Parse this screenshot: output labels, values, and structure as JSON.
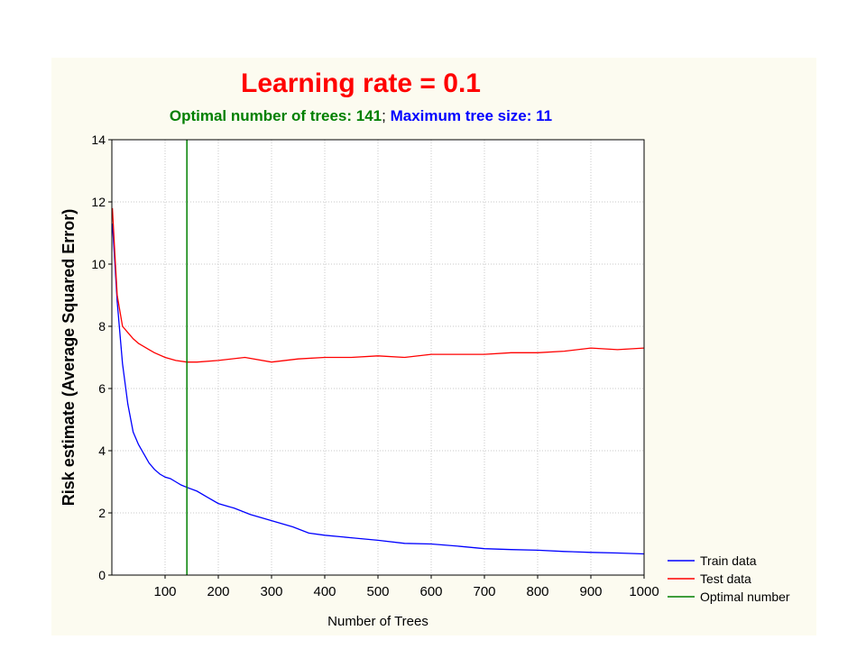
{
  "chart_data": {
    "type": "line",
    "title": "Learning rate = 0.1",
    "subtitle": {
      "optimal_label": "Optimal number of trees: 141",
      "separator": ";",
      "tree_size_label": "Maximum tree size: 11"
    },
    "xlabel": "Number of Trees",
    "ylabel": "Risk estimate (Average Squared Error)",
    "xlim": [
      0,
      1000
    ],
    "ylim": [
      0,
      14
    ],
    "xticks": [
      100,
      200,
      300,
      400,
      500,
      600,
      700,
      800,
      900,
      1000
    ],
    "yticks": [
      0,
      2,
      4,
      6,
      8,
      10,
      12,
      14
    ],
    "grid": true,
    "legend_position": "bottom-right-outside",
    "vline": {
      "x": 141,
      "name": "Optimal number",
      "color": "#008000"
    },
    "series": [
      {
        "name": "Train data",
        "color": "#0000ff",
        "x": [
          1,
          5,
          10,
          20,
          30,
          40,
          50,
          60,
          70,
          80,
          90,
          100,
          110,
          120,
          130,
          141,
          160,
          180,
          200,
          230,
          260,
          300,
          340,
          370,
          400,
          450,
          500,
          550,
          600,
          650,
          700,
          750,
          800,
          850,
          900,
          950,
          1000
        ],
        "values": [
          11.3,
          10.2,
          8.8,
          6.8,
          5.5,
          4.6,
          4.2,
          3.9,
          3.6,
          3.4,
          3.25,
          3.15,
          3.1,
          3.0,
          2.9,
          2.82,
          2.7,
          2.5,
          2.3,
          2.15,
          1.95,
          1.75,
          1.55,
          1.35,
          1.28,
          1.2,
          1.12,
          1.02,
          1.0,
          0.93,
          0.85,
          0.82,
          0.8,
          0.76,
          0.73,
          0.71,
          0.68
        ]
      },
      {
        "name": "Test data",
        "color": "#ff0000",
        "x": [
          1,
          5,
          10,
          20,
          30,
          40,
          50,
          60,
          70,
          80,
          100,
          120,
          141,
          160,
          200,
          250,
          300,
          350,
          400,
          450,
          500,
          550,
          600,
          650,
          700,
          750,
          800,
          850,
          900,
          950,
          1000
        ],
        "values": [
          11.8,
          10.5,
          9.0,
          8.0,
          7.8,
          7.6,
          7.45,
          7.35,
          7.25,
          7.15,
          7.0,
          6.9,
          6.85,
          6.85,
          6.9,
          7.0,
          6.85,
          6.95,
          7.0,
          7.0,
          7.05,
          7.0,
          7.1,
          7.1,
          7.1,
          7.15,
          7.15,
          7.2,
          7.3,
          7.25,
          7.3
        ]
      }
    ]
  }
}
